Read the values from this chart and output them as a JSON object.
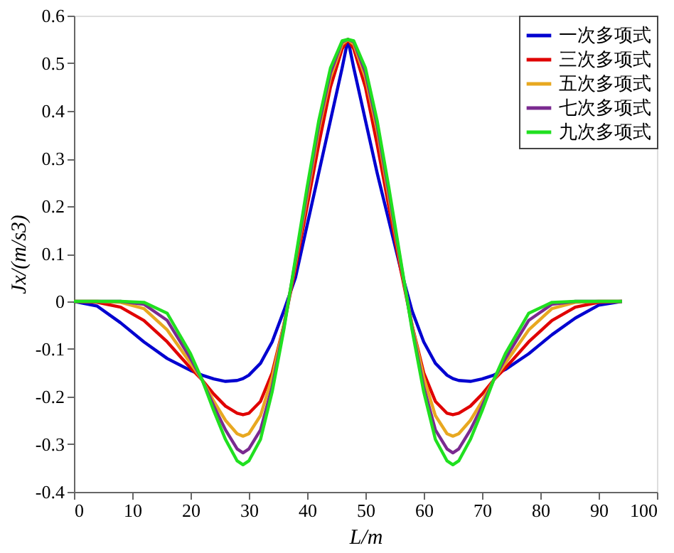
{
  "chart_data": {
    "type": "line",
    "xlabel": "L/m",
    "ylabel": "Jx/(m/s3)",
    "x": [
      0,
      4,
      8,
      12,
      16,
      20,
      22,
      24,
      26,
      28,
      29,
      30,
      32,
      34,
      36,
      38,
      40,
      42,
      44,
      46,
      47,
      48,
      50,
      52,
      54,
      56,
      58,
      60,
      62,
      64,
      65,
      66,
      68,
      70,
      72,
      74,
      78,
      82,
      86,
      90,
      94
    ],
    "series": [
      {
        "name": "一次多项式",
        "color": "#0000d0",
        "values": [
          0,
          -0.01,
          -0.045,
          -0.085,
          -0.12,
          -0.145,
          -0.155,
          -0.163,
          -0.168,
          -0.166,
          -0.162,
          -0.155,
          -0.13,
          -0.085,
          -0.02,
          0.05,
          0.16,
          0.27,
          0.38,
          0.49,
          0.55,
          0.49,
          0.38,
          0.27,
          0.17,
          0.07,
          -0.02,
          -0.085,
          -0.13,
          -0.155,
          -0.162,
          -0.166,
          -0.168,
          -0.163,
          -0.155,
          -0.143,
          -0.11,
          -0.07,
          -0.035,
          -0.008,
          0
        ]
      },
      {
        "name": "三次多项式",
        "color": "#e00000",
        "values": [
          0,
          -0.002,
          -0.012,
          -0.04,
          -0.085,
          -0.14,
          -0.165,
          -0.195,
          -0.22,
          -0.235,
          -0.238,
          -0.235,
          -0.21,
          -0.15,
          -0.05,
          0.07,
          0.2,
          0.33,
          0.45,
          0.53,
          0.55,
          0.53,
          0.45,
          0.33,
          0.2,
          0.07,
          -0.05,
          -0.15,
          -0.21,
          -0.235,
          -0.238,
          -0.235,
          -0.22,
          -0.195,
          -0.165,
          -0.14,
          -0.085,
          -0.04,
          -0.012,
          -0.002,
          0
        ]
      },
      {
        "name": "五次多项式",
        "color": "#e8a820",
        "values": [
          0,
          0,
          -0.002,
          -0.015,
          -0.06,
          -0.13,
          -0.165,
          -0.21,
          -0.25,
          -0.278,
          -0.283,
          -0.278,
          -0.24,
          -0.16,
          -0.05,
          0.08,
          0.22,
          0.36,
          0.47,
          0.54,
          0.55,
          0.54,
          0.47,
          0.36,
          0.22,
          0.08,
          -0.05,
          -0.16,
          -0.24,
          -0.278,
          -0.283,
          -0.278,
          -0.25,
          -0.21,
          -0.165,
          -0.13,
          -0.06,
          -0.015,
          -0.002,
          0,
          0
        ]
      },
      {
        "name": "七次多项式",
        "color": "#7a2a90",
        "values": [
          0,
          0,
          0,
          -0.006,
          -0.04,
          -0.12,
          -0.165,
          -0.22,
          -0.27,
          -0.31,
          -0.318,
          -0.31,
          -0.27,
          -0.18,
          -0.055,
          0.085,
          0.23,
          0.37,
          0.48,
          0.545,
          0.55,
          0.545,
          0.48,
          0.37,
          0.23,
          0.085,
          -0.055,
          -0.18,
          -0.27,
          -0.31,
          -0.318,
          -0.31,
          -0.27,
          -0.22,
          -0.165,
          -0.12,
          -0.04,
          -0.006,
          0,
          0,
          0
        ]
      },
      {
        "name": "九次多项式",
        "color": "#20e020",
        "values": [
          0,
          0,
          0,
          -0.002,
          -0.025,
          -0.11,
          -0.165,
          -0.23,
          -0.29,
          -0.335,
          -0.343,
          -0.335,
          -0.29,
          -0.19,
          -0.06,
          0.09,
          0.24,
          0.38,
          0.49,
          0.547,
          0.55,
          0.547,
          0.49,
          0.38,
          0.24,
          0.09,
          -0.06,
          -0.19,
          -0.29,
          -0.335,
          -0.343,
          -0.335,
          -0.29,
          -0.23,
          -0.165,
          -0.11,
          -0.025,
          -0.002,
          0,
          0,
          0
        ]
      }
    ],
    "xlim": [
      0,
      100
    ],
    "xticks": [
      0,
      10,
      20,
      30,
      40,
      50,
      60,
      70,
      80,
      90,
      100
    ],
    "ylim": [
      -0.4,
      0.6
    ],
    "yticks": [
      -0.4,
      -0.3,
      -0.2,
      -0.1,
      0,
      0.1,
      0.2,
      0.3,
      0.4,
      0.5,
      0.6
    ],
    "grid": false,
    "legend": "top right",
    "marker": "none",
    "line_style": "solid"
  }
}
